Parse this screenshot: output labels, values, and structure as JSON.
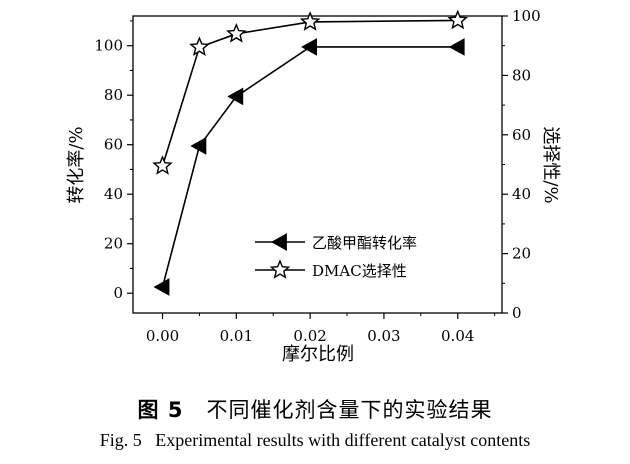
{
  "caption": {
    "cn_fig_number": "图 5",
    "cn_title": "不同催化剂含量下的实验结果",
    "en_fig_number": "Fig. 5",
    "en_title": "Experimental results with different catalyst contents"
  },
  "chart_data": {
    "type": "line",
    "xlabel": "摩尔比例",
    "ylabel": "转化率/%",
    "y2label": "选择性/%",
    "xlim": [
      -0.004,
      0.046
    ],
    "ylim": [
      -8,
      112
    ],
    "y2lim": [
      0,
      100
    ],
    "x_ticks": [
      "0.00",
      "0.01",
      "0.02",
      "0.03",
      "0.04"
    ],
    "x_tick_values": [
      0.0,
      0.01,
      0.02,
      0.03,
      0.04
    ],
    "y_ticks": [
      "0",
      "20",
      "40",
      "60",
      "80",
      "100"
    ],
    "y_tick_values": [
      0,
      20,
      40,
      60,
      80,
      100
    ],
    "y2_ticks": [
      "0",
      "20",
      "40",
      "60",
      "80",
      "100"
    ],
    "y2_tick_values": [
      0,
      20,
      40,
      60,
      80,
      100
    ],
    "legend_position": "lower-right",
    "series": [
      {
        "name": "乙酸甲酯转化率",
        "axis": "left",
        "marker": "left-triangle",
        "x": [
          0.0,
          0.005,
          0.01,
          0.02,
          0.04
        ],
        "y": [
          2.5,
          59.5,
          79.5,
          99.5,
          99.5
        ]
      },
      {
        "name": "DMAC选择性",
        "axis": "right",
        "marker": "star",
        "x": [
          0.0,
          0.005,
          0.01,
          0.02,
          0.04
        ],
        "y": [
          49.5,
          89.5,
          94,
          98,
          98.5
        ]
      }
    ]
  }
}
